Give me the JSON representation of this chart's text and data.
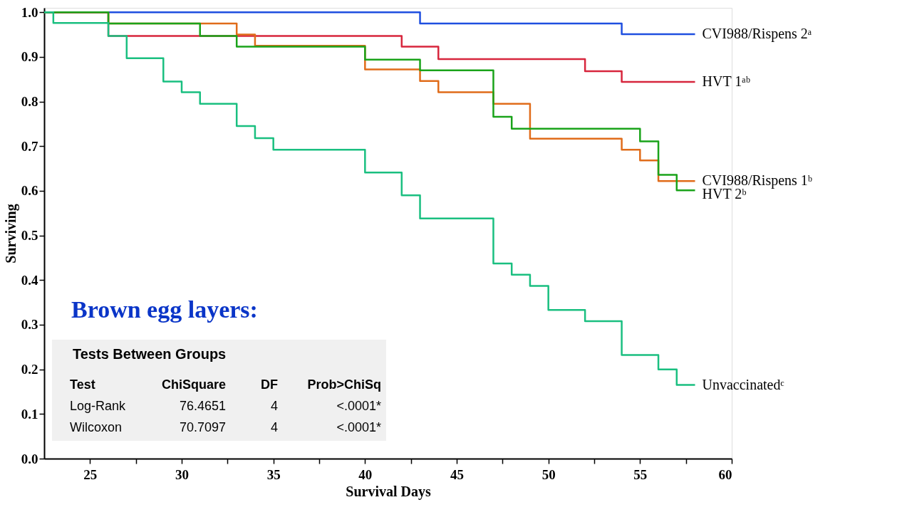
{
  "chart_data": {
    "type": "step",
    "xlabel": "Survival Days",
    "ylabel": "Surviving",
    "xlim": [
      22.5,
      60
    ],
    "ylim": [
      0,
      1.01
    ],
    "xticks": [
      25,
      {
        "value": 27.5,
        "label": null
      },
      30,
      {
        "value": 32.5,
        "label": null
      },
      35,
      {
        "value": 37.5,
        "label": null
      },
      40,
      {
        "value": 42.5,
        "label": null
      },
      45,
      {
        "value": 47.5,
        "label": null
      },
      50,
      {
        "value": 52.5,
        "label": null
      },
      55,
      {
        "value": 57.5,
        "label": null
      },
      60
    ],
    "yticks": [
      {
        "value": 0,
        "label": "0.0"
      },
      0.1,
      0.2,
      0.3,
      0.4,
      0.5,
      0.6,
      0.7,
      0.8,
      0.9,
      {
        "value": 1,
        "label": "1.0"
      }
    ],
    "grid": false,
    "legend": false,
    "series": [
      {
        "name": "CVI988/Rispens 2ᵃ",
        "color": "#1f4fe0",
        "x": [
          22.5,
          43,
          54,
          58
        ],
        "values": [
          1.0,
          0.975,
          0.951,
          0.951
        ]
      },
      {
        "name": "HVT 1ᵃᵇ",
        "color": "#d7263d",
        "x": [
          22.5,
          26,
          42,
          44,
          52,
          54,
          58
        ],
        "values": [
          1.0,
          0.947,
          0.923,
          0.895,
          0.868,
          0.844,
          0.844
        ]
      },
      {
        "name": "CVI988/Rispens 1ᵇ",
        "color": "#e06c1a",
        "x": [
          22.5,
          26,
          33,
          34,
          40,
          43,
          44,
          47,
          49,
          54,
          55,
          56,
          58
        ],
        "values": [
          1.0,
          0.975,
          0.95,
          0.925,
          0.872,
          0.846,
          0.821,
          0.795,
          0.717,
          0.692,
          0.668,
          0.622,
          0.622
        ]
      },
      {
        "name": "HVT 2ᵇ",
        "color": "#1aa31a",
        "x": [
          22.5,
          26,
          31,
          33,
          40,
          43,
          47,
          48,
          55,
          56,
          57,
          58
        ],
        "values": [
          1.0,
          0.975,
          0.947,
          0.923,
          0.894,
          0.87,
          0.766,
          0.739,
          0.711,
          0.636,
          0.601,
          0.601
        ]
      },
      {
        "name": "Unvaccinatedᶜ",
        "color": "#1abf80",
        "x": [
          22.5,
          23,
          26,
          27,
          29,
          30,
          31,
          33,
          34,
          35,
          40,
          42,
          43,
          47,
          48,
          49,
          50,
          52,
          54,
          56,
          57,
          58
        ],
        "values": [
          1.0,
          0.976,
          0.947,
          0.897,
          0.845,
          0.821,
          0.795,
          0.745,
          0.718,
          0.692,
          0.641,
          0.59,
          0.538,
          0.437,
          0.412,
          0.387,
          0.333,
          0.308,
          0.232,
          0.2,
          0.165,
          0.165
        ]
      }
    ],
    "annotations": [
      "Brown egg layers:",
      "Tests Between Groups",
      "Test",
      "ChiSquare",
      "DF",
      "Prob>ChiSq",
      "Log-Rank",
      "76.4651",
      "4",
      "<.0001*",
      "Wilcoxon",
      "70.7097",
      "4",
      "<.0001*"
    ]
  }
}
